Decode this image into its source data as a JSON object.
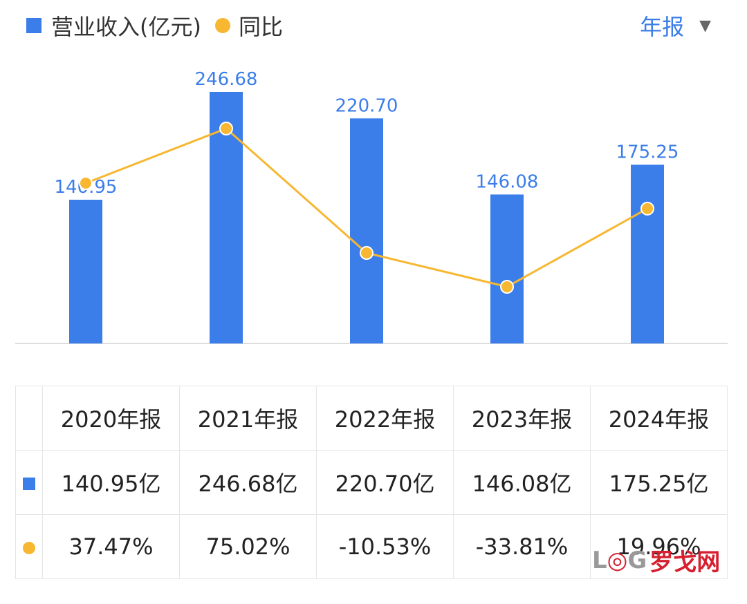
{
  "header": {
    "legend_revenue": "营业收入(亿元)",
    "legend_yoy": "同比",
    "period_selector": "年报"
  },
  "colors": {
    "bar": "#3b7de9",
    "line": "#f7b731",
    "positive": "#e5484d",
    "negative": "#2d9e6e"
  },
  "chart_data": {
    "type": "bar",
    "categories": [
      "2020年报",
      "2021年报",
      "2022年报",
      "2023年报",
      "2024年报"
    ],
    "series": [
      {
        "name": "营业收入(亿元)",
        "type": "bar",
        "values": [
          140.95,
          246.68,
          220.7,
          146.08,
          175.25
        ]
      },
      {
        "name": "同比",
        "type": "line",
        "values": [
          37.47,
          75.02,
          -10.53,
          -33.81,
          19.96
        ]
      }
    ],
    "bar_labels": [
      "140.95",
      "246.68",
      "220.70",
      "146.08",
      "175.25"
    ],
    "grid": false
  },
  "table": {
    "headers": [
      "2020年报",
      "2021年报",
      "2022年报",
      "2023年报",
      "2024年报"
    ],
    "revenue_row": [
      "140.95亿",
      "246.68亿",
      "220.70亿",
      "146.08亿",
      "175.25亿"
    ],
    "yoy_row": [
      "37.47%",
      "75.02%",
      "-10.53%",
      "-33.81%",
      "19.96%"
    ]
  },
  "watermark": {
    "latin": "LOG",
    "chinese": "罗戈网"
  }
}
